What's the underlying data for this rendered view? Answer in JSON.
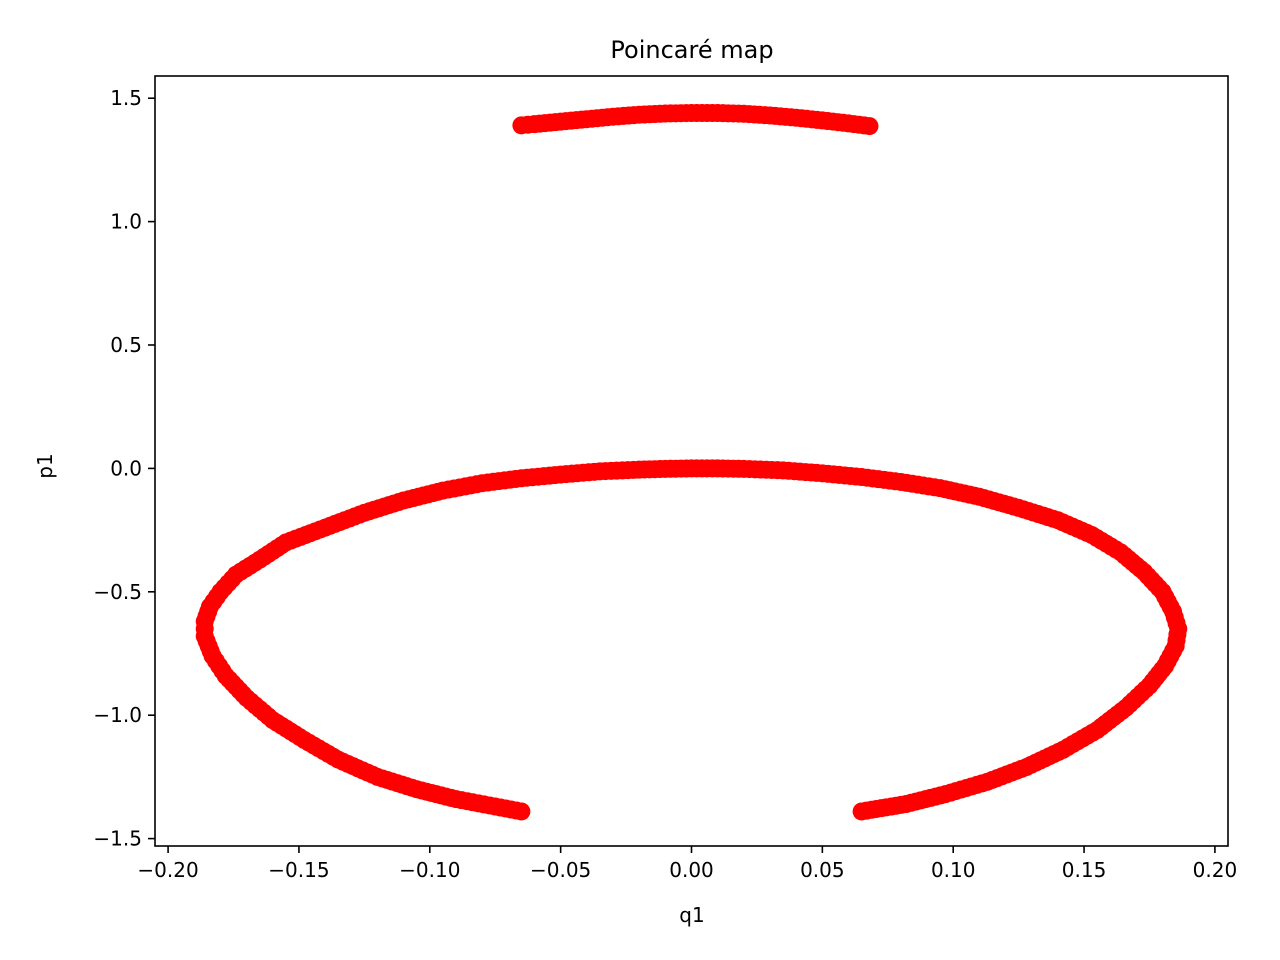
{
  "chart_data": {
    "type": "scatter",
    "title": "Poincaré map",
    "xlabel": "q1",
    "ylabel": "p1",
    "xlim": [
      -0.205,
      0.205
    ],
    "ylim": [
      -1.53,
      1.59
    ],
    "grid": false,
    "legend": "none",
    "marker_color": "#ff0000",
    "xticks": [
      -0.2,
      -0.15,
      -0.1,
      -0.05,
      0.0,
      0.05,
      0.1,
      0.15,
      0.2
    ],
    "xtick_labels": [
      "−0.20",
      "−0.15",
      "−0.10",
      "−0.05",
      "0.00",
      "0.05",
      "0.10",
      "0.15",
      "0.20"
    ],
    "yticks": [
      1.5,
      1.0,
      0.5,
      0.0,
      -0.5,
      -1.0,
      -1.5
    ],
    "ytick_labels": [
      "1.5",
      "1.0",
      "0.5",
      "0.0",
      "−0.5",
      "−1.0",
      "−1.5"
    ],
    "series": [
      {
        "points": [
          [
            -0.065,
            1.39
          ],
          [
            -0.06,
            1.395
          ],
          [
            -0.05,
            1.405
          ],
          [
            -0.04,
            1.415
          ],
          [
            -0.03,
            1.425
          ],
          [
            -0.02,
            1.433
          ],
          [
            -0.01,
            1.438
          ],
          [
            0.0,
            1.44
          ],
          [
            0.01,
            1.44
          ],
          [
            0.02,
            1.437
          ],
          [
            0.03,
            1.43
          ],
          [
            0.04,
            1.421
          ],
          [
            0.05,
            1.41
          ],
          [
            0.06,
            1.398
          ],
          [
            0.068,
            1.387
          ],
          [
            -0.065,
            -1.39
          ],
          [
            -0.075,
            -1.37
          ],
          [
            -0.09,
            -1.34
          ],
          [
            -0.105,
            -1.3
          ],
          [
            -0.12,
            -1.25
          ],
          [
            -0.135,
            -1.18
          ],
          [
            -0.148,
            -1.1
          ],
          [
            -0.16,
            -1.02
          ],
          [
            -0.17,
            -0.93
          ],
          [
            -0.178,
            -0.84
          ],
          [
            -0.183,
            -0.76
          ],
          [
            -0.186,
            -0.68
          ],
          [
            -0.186,
            -0.62
          ],
          [
            -0.184,
            -0.56
          ],
          [
            -0.18,
            -0.5
          ],
          [
            -0.174,
            -0.43
          ],
          [
            -0.165,
            -0.37
          ],
          [
            -0.155,
            -0.3
          ],
          [
            -0.14,
            -0.24
          ],
          [
            -0.125,
            -0.18
          ],
          [
            -0.11,
            -0.13
          ],
          [
            -0.095,
            -0.09
          ],
          [
            -0.08,
            -0.06
          ],
          [
            -0.065,
            -0.04
          ],
          [
            -0.05,
            -0.025
          ],
          [
            -0.035,
            -0.012
          ],
          [
            -0.02,
            -0.005
          ],
          [
            -0.01,
            -0.002
          ],
          [
            0.0,
            0.0
          ],
          [
            0.01,
            0.0
          ],
          [
            0.02,
            -0.002
          ],
          [
            0.035,
            -0.008
          ],
          [
            0.05,
            -0.02
          ],
          [
            0.065,
            -0.035
          ],
          [
            0.08,
            -0.055
          ],
          [
            0.095,
            -0.08
          ],
          [
            0.11,
            -0.115
          ],
          [
            0.125,
            -0.16
          ],
          [
            0.14,
            -0.21
          ],
          [
            0.153,
            -0.27
          ],
          [
            0.164,
            -0.34
          ],
          [
            0.173,
            -0.42
          ],
          [
            0.18,
            -0.5
          ],
          [
            0.184,
            -0.58
          ],
          [
            0.186,
            -0.65
          ],
          [
            0.185,
            -0.72
          ],
          [
            0.181,
            -0.8
          ],
          [
            0.175,
            -0.88
          ],
          [
            0.166,
            -0.97
          ],
          [
            0.155,
            -1.06
          ],
          [
            0.142,
            -1.14
          ],
          [
            0.128,
            -1.21
          ],
          [
            0.113,
            -1.27
          ],
          [
            0.097,
            -1.32
          ],
          [
            0.082,
            -1.36
          ],
          [
            0.065,
            -1.39
          ]
        ]
      }
    ]
  }
}
